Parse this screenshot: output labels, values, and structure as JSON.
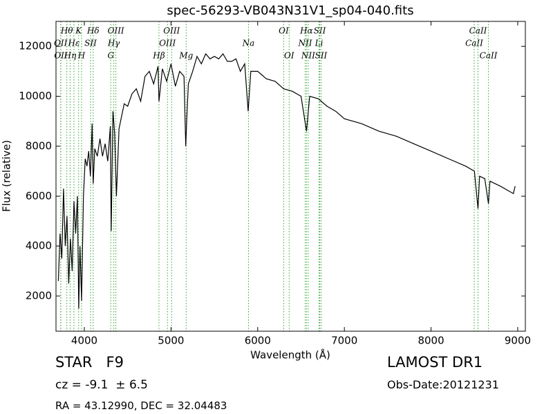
{
  "chart_data": {
    "type": "line",
    "title": "spec-56293-VB043N31V1_sp04-040.fits",
    "xlabel": "Wavelength (Å)",
    "ylabel": "Flux (relative)",
    "color": "#000000",
    "line_marker_color": "#2ca02c",
    "xlim": [
      3673,
      9088
    ],
    "ylim": [
      590,
      13000
    ],
    "xticks": [
      4000,
      5000,
      6000,
      7000,
      8000,
      9000
    ],
    "yticks": [
      2000,
      4000,
      6000,
      8000,
      10000,
      12000
    ],
    "x": [
      3700,
      3720,
      3740,
      3760,
      3780,
      3800,
      3820,
      3840,
      3860,
      3880,
      3900,
      3920,
      3935,
      3950,
      3968,
      3990,
      4010,
      4030,
      4050,
      4070,
      4090,
      4102,
      4120,
      4150,
      4180,
      4210,
      4240,
      4270,
      4300,
      4310,
      4330,
      4350,
      4370,
      4400,
      4430,
      4460,
      4500,
      4550,
      4600,
      4650,
      4700,
      4750,
      4800,
      4850,
      4861,
      4900,
      4950,
      5000,
      5050,
      5100,
      5150,
      5170,
      5184,
      5200,
      5250,
      5300,
      5350,
      5400,
      5450,
      5500,
      5550,
      5600,
      5650,
      5700,
      5750,
      5800,
      5850,
      5890,
      5920,
      6000,
      6100,
      6200,
      6300,
      6400,
      6500,
      6563,
      6600,
      6700,
      6800,
      6900,
      7000,
      7200,
      7400,
      7600,
      7800,
      8000,
      8200,
      8400,
      8500,
      8542,
      8560,
      8620,
      8662,
      8680,
      8800,
      8900,
      8950,
      8970
    ],
    "values": [
      2600,
      4500,
      3500,
      6300,
      4000,
      5200,
      2500,
      4300,
      3000,
      5800,
      4500,
      6000,
      1500,
      4000,
      1800,
      6000,
      7500,
      7200,
      7800,
      6800,
      8900,
      6500,
      7900,
      7600,
      8300,
      7600,
      8100,
      7400,
      8800,
      4600,
      9400,
      8500,
      6000,
      8700,
      9200,
      9700,
      9600,
      10100,
      10300,
      9800,
      10800,
      11000,
      10500,
      11200,
      9800,
      11100,
      10600,
      11300,
      10400,
      11000,
      10800,
      8000,
      9300,
      10500,
      11000,
      11600,
      11300,
      11700,
      11500,
      11600,
      11500,
      11700,
      11400,
      11400,
      11500,
      11000,
      11300,
      9400,
      11000,
      11000,
      10700,
      10600,
      10300,
      10200,
      10000,
      8600,
      10000,
      9900,
      9600,
      9400,
      9100,
      8900,
      8600,
      8400,
      8100,
      7800,
      7500,
      7200,
      7000,
      5500,
      6800,
      6700,
      5700,
      6600,
      6400,
      6200,
      6100,
      6400
    ],
    "lines": [
      {
        "label": "OII",
        "wavelength": 3727
      },
      {
        "label": "OII",
        "wavelength": 3729
      },
      {
        "label": "Hθ",
        "wavelength": 3798
      },
      {
        "label": "Hη",
        "wavelength": 3836
      },
      {
        "label": "Hε",
        "wavelength": 3880
      },
      {
        "label": "K",
        "wavelength": 3934
      },
      {
        "label": "H",
        "wavelength": 3968
      },
      {
        "label": "SII",
        "wavelength": 4072
      },
      {
        "label": "Hδ",
        "wavelength": 4102
      },
      {
        "label": "G",
        "wavelength": 4305
      },
      {
        "label": "Hγ",
        "wavelength": 4340
      },
      {
        "label": "OIII",
        "wavelength": 4364
      },
      {
        "label": "Hβ",
        "wavelength": 4861
      },
      {
        "label": "OIII",
        "wavelength": 4959
      },
      {
        "label": "OIII",
        "wavelength": 5007
      },
      {
        "label": "Mg",
        "wavelength": 5175
      },
      {
        "label": "Na",
        "wavelength": 5894
      },
      {
        "label": "OI",
        "wavelength": 6300
      },
      {
        "label": "OI",
        "wavelength": 6363
      },
      {
        "label": "NII",
        "wavelength": 6548
      },
      {
        "label": "Hα",
        "wavelength": 6563
      },
      {
        "label": "NII",
        "wavelength": 6583
      },
      {
        "label": "Li",
        "wavelength": 6708
      },
      {
        "label": "SII",
        "wavelength": 6716
      },
      {
        "label": "SII",
        "wavelength": 6731
      },
      {
        "label": "CaII",
        "wavelength": 8498
      },
      {
        "label": "CaII",
        "wavelength": 8542
      },
      {
        "label": "CaII",
        "wavelength": 8662
      }
    ]
  },
  "info": {
    "class": "STAR   F9",
    "cz": "cz = -9.1  ± 6.5",
    "coords": "RA = 43.12990, DEC = 32.04483",
    "survey": "LAMOST DR1",
    "date": "Obs-Date:20121231"
  }
}
